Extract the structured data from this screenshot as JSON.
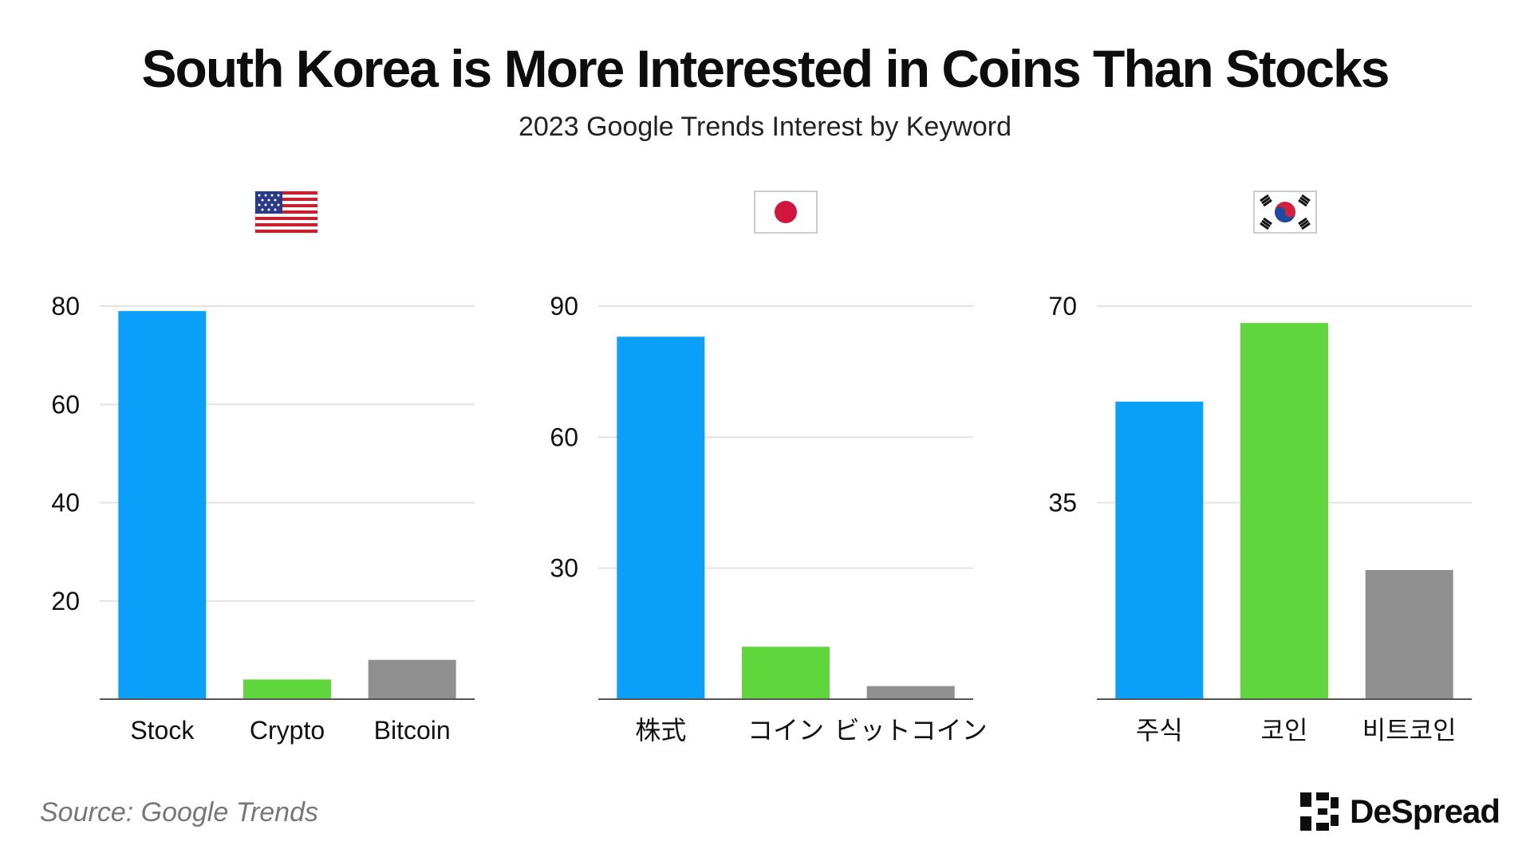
{
  "title": "South Korea is More Interested in Coins Than Stocks",
  "subtitle": "2023 Google Trends Interest by Keyword",
  "source": "Source: Google Trends",
  "brand": {
    "name": "DeSpread",
    "icon": "despread-logo-icon"
  },
  "colors": {
    "blue": "#0aa0fa",
    "green": "#5fd63c",
    "gray": "#8f8f8f",
    "grid": "#e3e3e3",
    "axis": "#555555"
  },
  "chart_data": [
    {
      "type": "bar",
      "flag": "us-flag-icon",
      "categories": [
        "Stock",
        "Crypto",
        "Bitcoin"
      ],
      "values": [
        79,
        4,
        8
      ],
      "colors": [
        "#0aa0fa",
        "#5fd63c",
        "#8f8f8f"
      ],
      "ylim": [
        0,
        80
      ],
      "yticks": [
        20,
        40,
        60,
        80
      ],
      "grid": true
    },
    {
      "type": "bar",
      "flag": "japan-flag-icon",
      "categories": [
        "株式",
        "コイン",
        "ビットコイン"
      ],
      "values": [
        83,
        12,
        3
      ],
      "colors": [
        "#0aa0fa",
        "#5fd63c",
        "#8f8f8f"
      ],
      "ylim": [
        0,
        90
      ],
      "yticks": [
        30,
        60,
        90
      ],
      "grid": true
    },
    {
      "type": "bar",
      "flag": "south-korea-flag-icon",
      "categories": [
        "주식",
        "코인",
        "비트코인"
      ],
      "values": [
        53,
        67,
        23
      ],
      "colors": [
        "#0aa0fa",
        "#5fd63c",
        "#8f8f8f"
      ],
      "ylim": [
        0,
        70
      ],
      "yticks": [
        35,
        70
      ],
      "grid": true
    }
  ]
}
